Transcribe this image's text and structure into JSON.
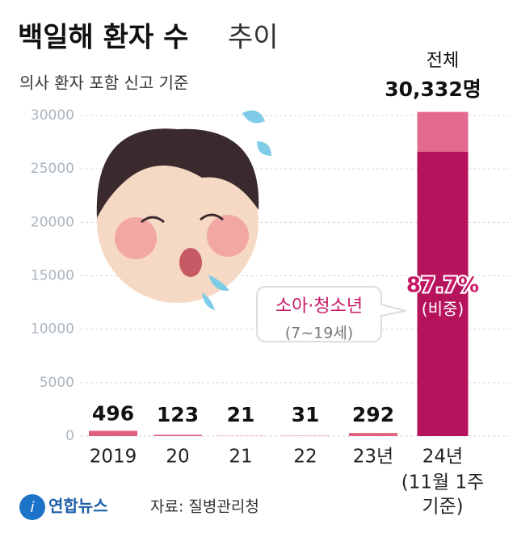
{
  "chart_data": {
    "type": "bar",
    "title": "백일해 환자 수",
    "title_light": "추이",
    "subtitle": "의사 환자 포함 신고 기준",
    "categories": [
      "2019",
      "20",
      "21",
      "22",
      "23년",
      "24년"
    ],
    "category_note": [
      "(11월 1주",
      "기준)"
    ],
    "values": [
      496,
      123,
      21,
      31,
      292,
      30332
    ],
    "value_labels": [
      "496",
      "123",
      "21",
      "31",
      "292",
      "30,332명"
    ],
    "total_label": "전체",
    "color": "#e0607e",
    "highlight_color": "#e36a8f",
    "share_color": "#b5145d",
    "share": 87.7,
    "share_label": "87.7%",
    "share_caption": "(비중)",
    "annotation": "소아·청소년",
    "annotation_note": "(7~19세)",
    "ylim": [
      0,
      30000
    ],
    "yticks": [
      0,
      5000,
      10000,
      15000,
      20000,
      25000,
      30000
    ],
    "grid": true,
    "source": "자료: 질병관리청",
    "logo": "연합뉴스"
  }
}
